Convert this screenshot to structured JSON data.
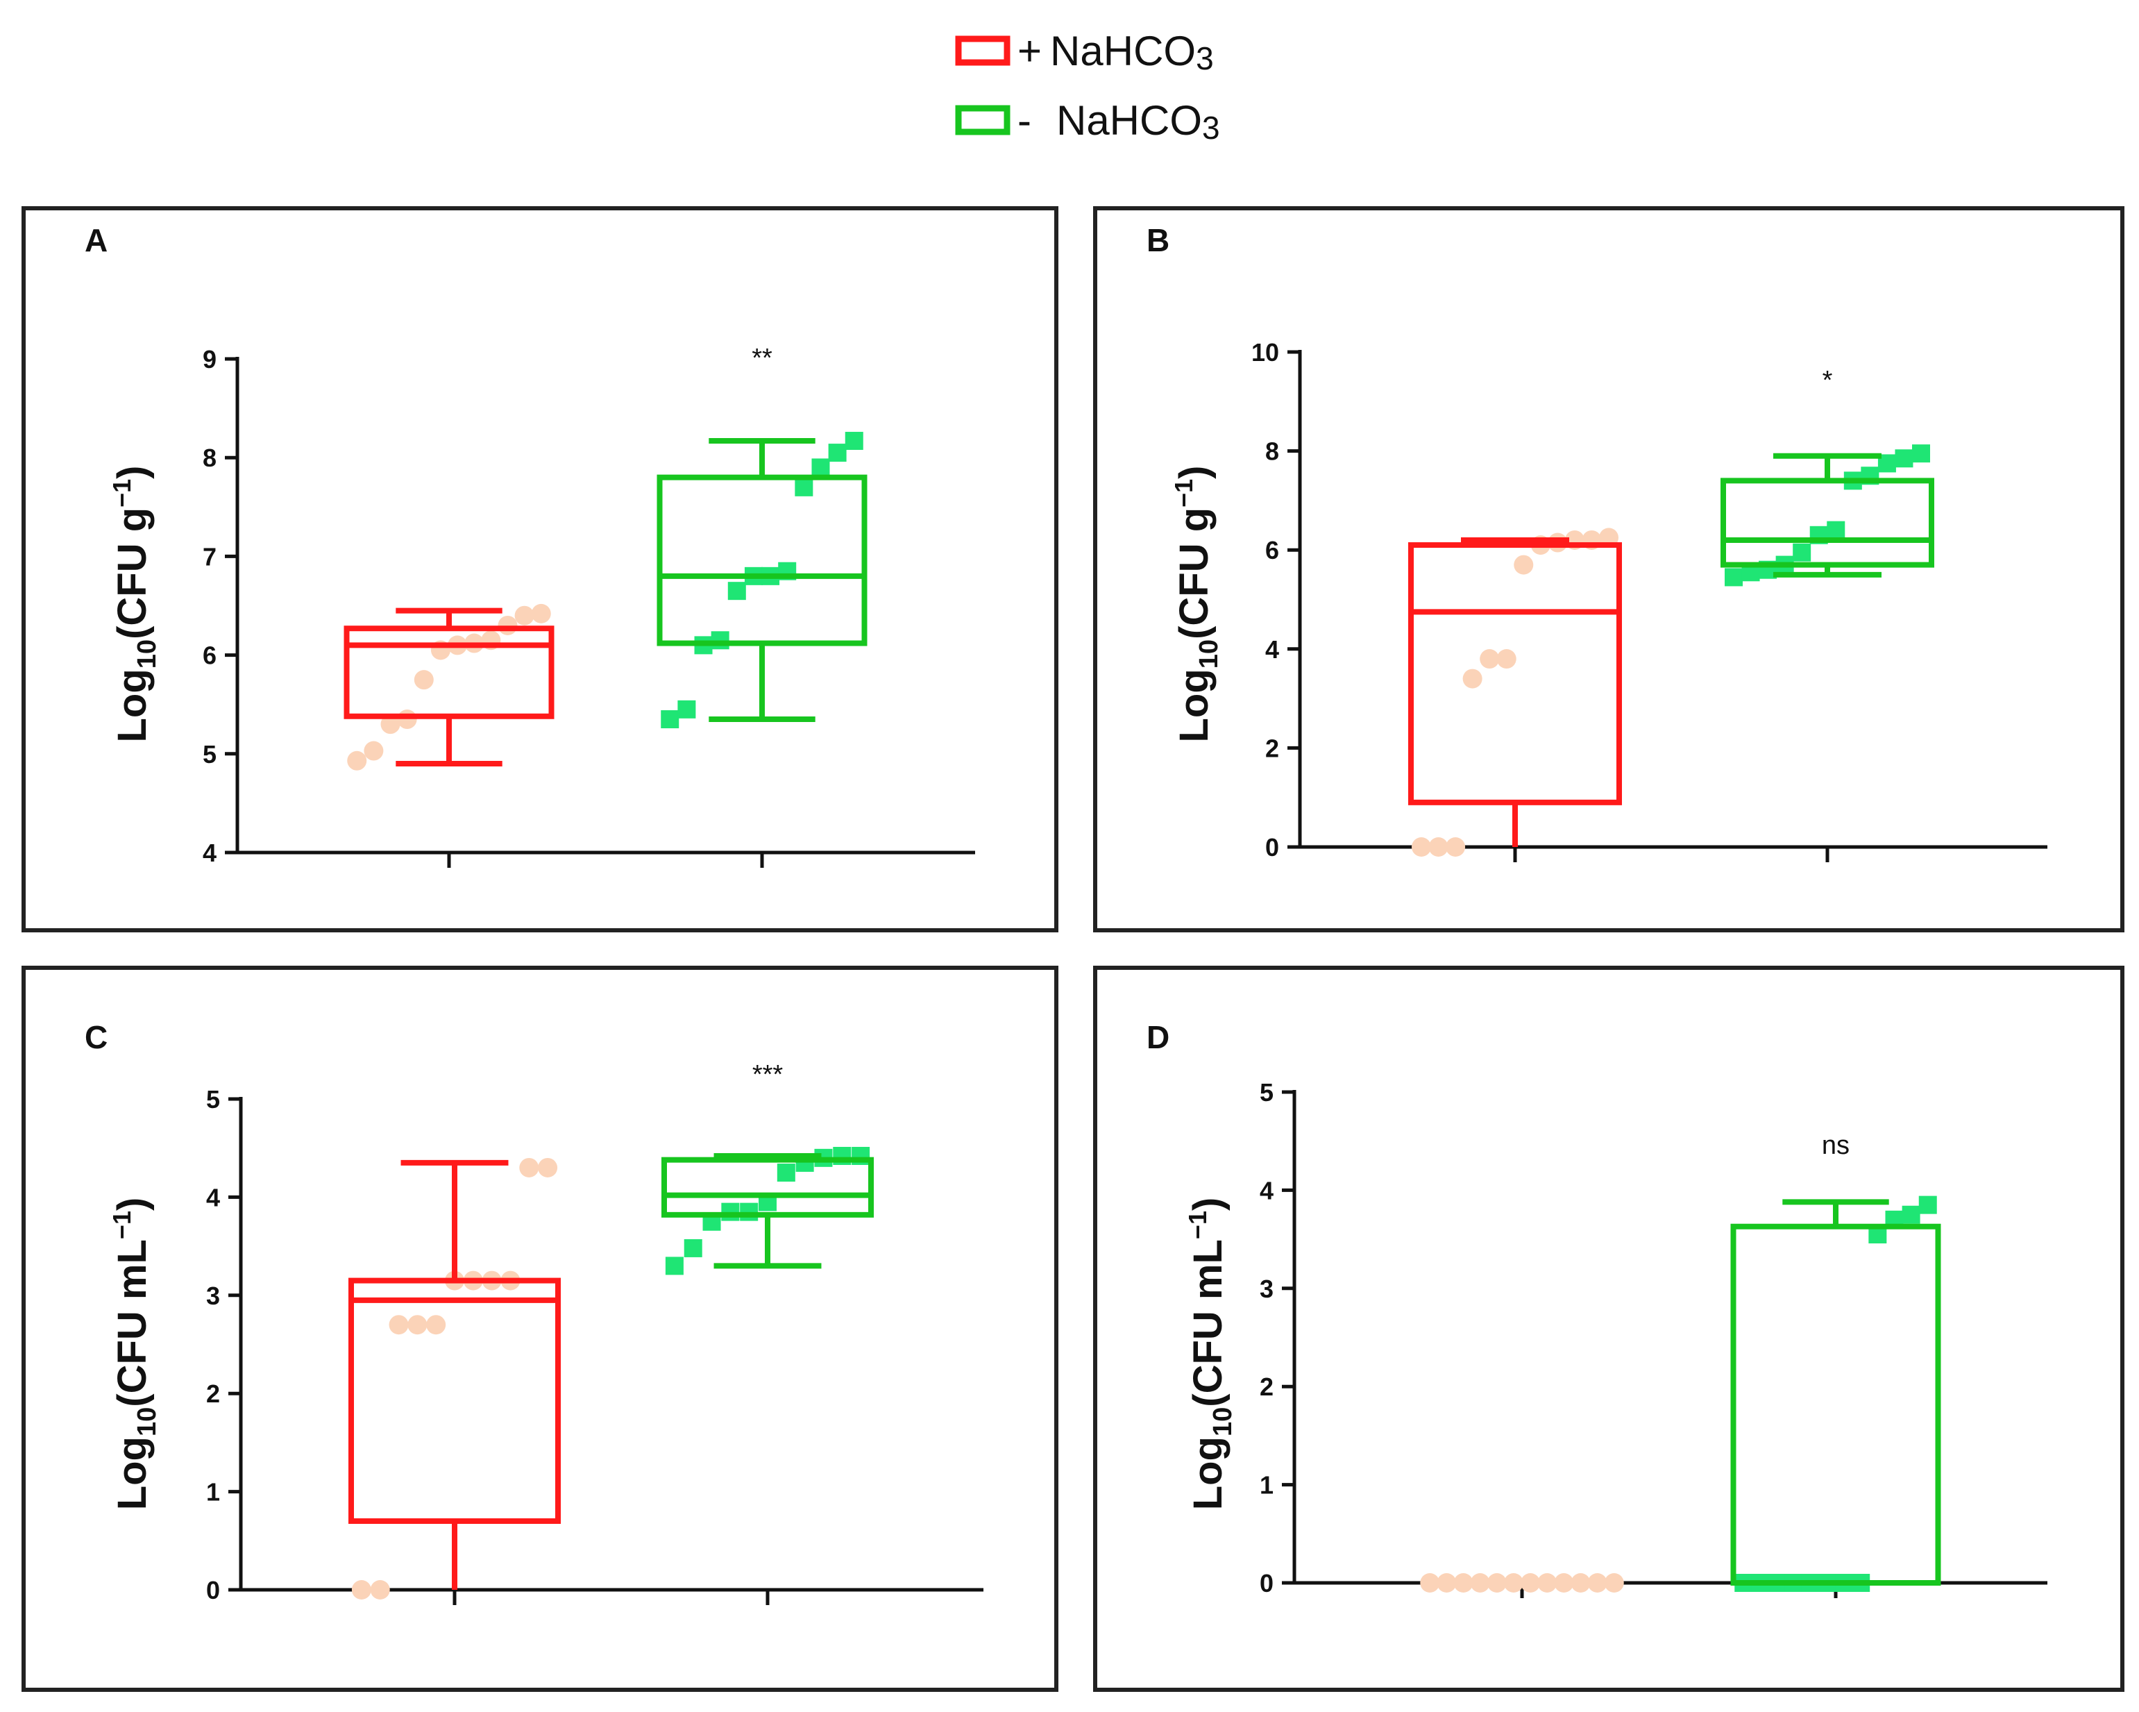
{
  "colors": {
    "plus": "#ff1a1a",
    "plus_points": "#fbd3b8",
    "minus": "#17c51f",
    "minus_points": "#1fe574",
    "axis": "#111111"
  },
  "legend": {
    "items": [
      {
        "sign": "+",
        "text": "NaHCO",
        "sub": "3"
      },
      {
        "sign": "-",
        "text": "NaHCO",
        "sub": "3"
      }
    ]
  },
  "chart_data": [
    {
      "panel": "A",
      "type": "box",
      "ylabel": {
        "main": "Log",
        "sub": "10",
        "unit": "(CFU g",
        "sup": "−1",
        "close": ")"
      },
      "ylim": [
        4,
        9
      ],
      "yticks": [
        4,
        5,
        6,
        7,
        8,
        9
      ],
      "significance": "**",
      "series": [
        {
          "name": "+ NaHCO3",
          "whisker_low": 4.9,
          "q1": 5.38,
          "median": 6.1,
          "q3": 6.27,
          "whisker_high": 6.45,
          "points": [
            4.93,
            5.03,
            5.3,
            5.35,
            5.75,
            6.05,
            6.1,
            6.12,
            6.15,
            6.3,
            6.4,
            6.42
          ]
        },
        {
          "name": "- NaHCO3",
          "whisker_low": 5.35,
          "q1": 6.12,
          "median": 6.8,
          "q3": 7.8,
          "whisker_high": 8.17,
          "points": [
            5.35,
            5.45,
            6.1,
            6.15,
            6.65,
            6.8,
            6.8,
            6.85,
            7.7,
            7.9,
            8.05,
            8.17
          ]
        }
      ]
    },
    {
      "panel": "B",
      "type": "box",
      "ylabel": {
        "main": "Log",
        "sub": "10",
        "unit": "(CFU g",
        "sup": "−1",
        "close": ")"
      },
      "ylim": [
        0,
        10
      ],
      "yticks": [
        0,
        2,
        4,
        6,
        8,
        10
      ],
      "significance": "*",
      "series": [
        {
          "name": "+ NaHCO3",
          "whisker_low": 0,
          "q1": 0.9,
          "median": 4.75,
          "q3": 6.1,
          "whisker_high": 6.2,
          "points": [
            0,
            0,
            0,
            3.4,
            3.8,
            3.8,
            5.7,
            6.1,
            6.15,
            6.2,
            6.2,
            6.25
          ]
        },
        {
          "name": "- NaHCO3",
          "whisker_low": 5.5,
          "q1": 5.7,
          "median": 6.2,
          "q3": 7.4,
          "whisker_high": 7.9,
          "points": [
            5.45,
            5.55,
            5.6,
            5.7,
            5.95,
            6.3,
            6.4,
            7.4,
            7.5,
            7.75,
            7.85,
            7.95
          ]
        }
      ]
    },
    {
      "panel": "C",
      "type": "box",
      "ylabel": {
        "main": "Log",
        "sub": "10",
        "unit": "(CFU mL",
        "sup": "−1",
        "close": ")"
      },
      "ylim": [
        0,
        5
      ],
      "yticks": [
        0,
        1,
        2,
        3,
        4,
        5
      ],
      "significance": "***",
      "series": [
        {
          "name": "+ NaHCO3",
          "whisker_low": 0,
          "q1": 0.7,
          "median": 2.95,
          "q3": 3.15,
          "whisker_high": 4.35,
          "points": [
            0,
            0,
            2.7,
            2.7,
            2.7,
            3.15,
            3.15,
            3.15,
            3.15,
            4.3,
            4.3
          ]
        },
        {
          "name": "- NaHCO3",
          "whisker_low": 3.3,
          "q1": 3.82,
          "median": 4.02,
          "q3": 4.38,
          "whisker_high": 4.42,
          "points": [
            3.3,
            3.48,
            3.75,
            3.85,
            3.85,
            3.95,
            4.25,
            4.35,
            4.4,
            4.42,
            4.42
          ]
        }
      ]
    },
    {
      "panel": "D",
      "type": "box",
      "ylabel": {
        "main": "Log",
        "sub": "10",
        "unit": "(CFU mL",
        "sup": "−1",
        "close": ")"
      },
      "ylim": [
        0,
        5
      ],
      "yticks": [
        0,
        1,
        2,
        3,
        4,
        5
      ],
      "significance": "ns",
      "series": [
        {
          "name": "+ NaHCO3",
          "whisker_low": 0,
          "q1": 0,
          "median": 0,
          "q3": 0,
          "whisker_high": 0,
          "points": [
            0,
            0,
            0,
            0,
            0,
            0,
            0,
            0,
            0,
            0,
            0,
            0
          ]
        },
        {
          "name": "- NaHCO3",
          "whisker_low": 0,
          "q1": 0,
          "median": 0,
          "q3": 3.63,
          "whisker_high": 3.88,
          "points": [
            0,
            0,
            0,
            0,
            0,
            0,
            0,
            0,
            3.55,
            3.7,
            3.75,
            3.85
          ]
        }
      ]
    }
  ]
}
